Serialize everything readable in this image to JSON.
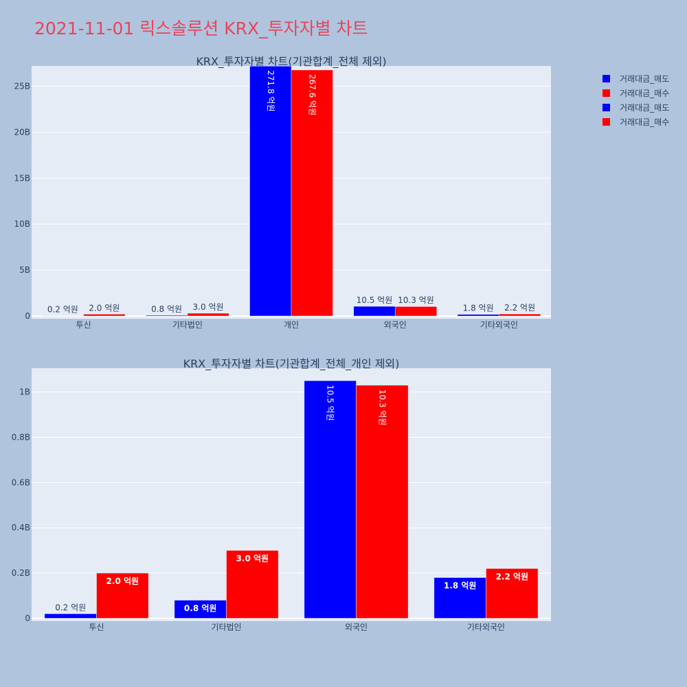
{
  "page": {
    "title": "2021-11-01 릭스솔루션 KRX_투자자별 차트",
    "title_color": "#e8455a",
    "background": "#b0c4de",
    "plot_background": "#e5ecf6"
  },
  "legend": {
    "placement": "top-right",
    "items": [
      {
        "label": "거래대금_매도",
        "color": "#0000ff"
      },
      {
        "label": "거래대금_매수",
        "color": "#ff0000"
      },
      {
        "label": "거래대금_매도",
        "color": "#0000ff"
      },
      {
        "label": "거래대금_매수",
        "color": "#ff0000"
      }
    ]
  },
  "chart_data": [
    {
      "type": "bar",
      "title": "KRX_투자자별 차트(기관합계_전체 제외)",
      "categories": [
        "투신",
        "기타법인",
        "개인",
        "외국인",
        "기타외국인"
      ],
      "ylim": [
        0,
        27200000000
      ],
      "yticks": [
        {
          "value": 0,
          "label": "0"
        },
        {
          "value": 5000000000,
          "label": "5B"
        },
        {
          "value": 10000000000,
          "label": "10B"
        },
        {
          "value": 15000000000,
          "label": "15B"
        },
        {
          "value": 20000000000,
          "label": "20B"
        },
        {
          "value": 25000000000,
          "label": "25B"
        }
      ],
      "grid": true,
      "series": [
        {
          "name": "거래대금_매도",
          "color": "#0000ff",
          "values": [
            20000000,
            80000000,
            27180000000,
            1050000000,
            180000000
          ],
          "labels": [
            "0.2 억원",
            "0.8 억원",
            "271.8 억원",
            "10.5 억원",
            "1.8 억원"
          ]
        },
        {
          "name": "거래대금_매수",
          "color": "#ff0000",
          "values": [
            200000000,
            300000000,
            26760000000,
            1030000000,
            220000000
          ],
          "labels": [
            "2.0 억원",
            "3.0 억원",
            "267.6 억원",
            "10.3 억원",
            "2.2 억원"
          ]
        }
      ]
    },
    {
      "type": "bar",
      "title": "KRX_투자자별 차트(기관합계_전체_개인 제외)",
      "categories": [
        "투신",
        "기타법인",
        "외국인",
        "기타외국인"
      ],
      "ylim": [
        0,
        1105000000
      ],
      "yticks": [
        {
          "value": 0,
          "label": "0"
        },
        {
          "value": 200000000,
          "label": "0.2B"
        },
        {
          "value": 400000000,
          "label": "0.4B"
        },
        {
          "value": 600000000,
          "label": "0.6B"
        },
        {
          "value": 800000000,
          "label": "0.8B"
        },
        {
          "value": 1000000000,
          "label": "1B"
        }
      ],
      "grid": true,
      "series": [
        {
          "name": "거래대금_매도",
          "color": "#0000ff",
          "values": [
            20000000,
            80000000,
            1050000000,
            180000000
          ],
          "labels": [
            "0.2 억원",
            "0.8 억원",
            "10.5 억원",
            "1.8 억원"
          ]
        },
        {
          "name": "거래대금_매수",
          "color": "#ff0000",
          "values": [
            200000000,
            300000000,
            1030000000,
            220000000
          ],
          "labels": [
            "2.0 억원",
            "3.0 억원",
            "10.3 억원",
            "2.2 억원"
          ]
        }
      ]
    }
  ]
}
